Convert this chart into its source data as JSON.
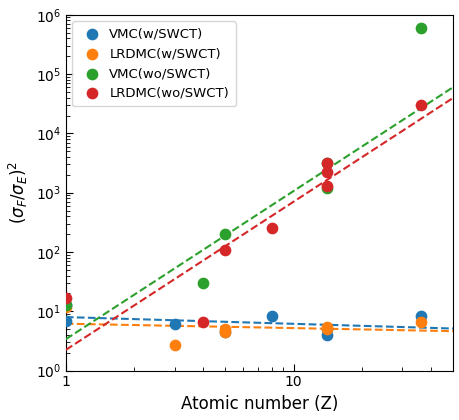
{
  "xlabel": "Atomic number (Z)",
  "xlim": [
    1,
    50
  ],
  "ylim": [
    1,
    1000000
  ],
  "legend_labels": [
    "VMC(w/SWCT)",
    "LRDMC(w/SWCT)",
    "VMC(wo/SWCT)",
    "LRDMC(wo/SWCT)"
  ],
  "colors": [
    "#1f77b4",
    "#ff7f0e",
    "#2ca02c",
    "#d62728"
  ],
  "VMC_wSWCT_x": [
    1.0,
    1.0,
    3.0,
    5.0,
    8.0,
    14.0,
    14.0,
    36.0
  ],
  "VMC_wSWCT_y": [
    7.0,
    13.0,
    6.0,
    4.5,
    8.5,
    5.0,
    4.0,
    8.5
  ],
  "LRDMC_wSWCT_x": [
    1.0,
    3.0,
    5.0,
    5.0,
    14.0,
    14.0,
    36.0
  ],
  "LRDMC_wSWCT_y": [
    12.0,
    2.7,
    5.0,
    4.5,
    5.5,
    5.0,
    6.5
  ],
  "VMC_woSWCT_x": [
    1.0,
    4.0,
    5.0,
    14.0,
    14.0,
    36.0
  ],
  "VMC_woSWCT_y": [
    13.0,
    30.0,
    200.0,
    1200.0,
    3200.0,
    600000.0
  ],
  "LRDMC_woSWCT_x": [
    1.0,
    4.0,
    5.0,
    8.0,
    14.0,
    14.0,
    14.0,
    36.0
  ],
  "LRDMC_woSWCT_y": [
    17.0,
    6.5,
    110.0,
    250.0,
    1300.0,
    2200.0,
    3200.0,
    30000.0
  ],
  "fit_vmc_wswct_intercept": 0.88,
  "fit_vmc_wswct_slope": -0.08,
  "fit_lrdmc_wswct_intercept": 0.82,
  "fit_lrdmc_wswct_slope": -0.15,
  "fit_vmc_woswct_intercept": 0.53,
  "fit_vmc_woswct_slope": 2.5,
  "fit_lrdmc_woswct_intercept": 0.35,
  "fit_lrdmc_woswct_slope": 2.5
}
